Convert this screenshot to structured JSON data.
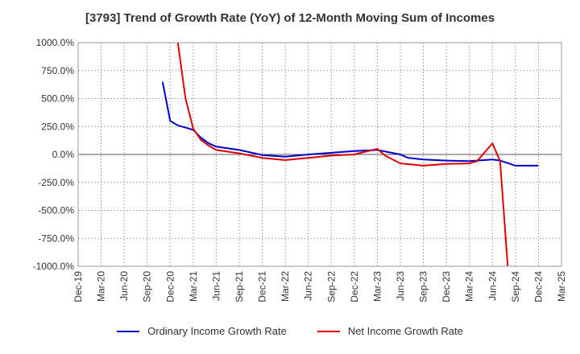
{
  "chart_data": {
    "type": "line",
    "title": "[3793]  Trend of Growth Rate (YoY) of 12-Month Moving Sum of Incomes",
    "xlabel": "",
    "ylabel": "",
    "ylim": [
      -1000,
      1000
    ],
    "y_ticks": [
      1000,
      750,
      500,
      250,
      0,
      -250,
      -500,
      -750,
      -1000
    ],
    "y_tick_labels": [
      "1000.0%",
      "750.0%",
      "500.0%",
      "250.0%",
      "0.0%",
      "-250.0%",
      "-500.0%",
      "-750.0%",
      "-1000.0%"
    ],
    "x_tick_labels": [
      "Dec-19",
      "Mar-20",
      "Jun-20",
      "Sep-20",
      "Dec-20",
      "Mar-21",
      "Jun-21",
      "Sep-21",
      "Dec-21",
      "Mar-22",
      "Jun-22",
      "Sep-22",
      "Dec-22",
      "Mar-23",
      "Jun-23",
      "Sep-23",
      "Dec-23",
      "Mar-24",
      "Jun-24",
      "Sep-24",
      "Dec-24",
      "Mar-25"
    ],
    "grid": true,
    "legend_position": "bottom",
    "series": [
      {
        "name": "Ordinary Income Growth Rate",
        "color": "#0000cc",
        "x": [
          "Nov-20",
          "Dec-20",
          "Jan-21",
          "Feb-21",
          "Mar-21",
          "Apr-21",
          "May-21",
          "Jun-21",
          "Sep-21",
          "Dec-21",
          "Mar-22",
          "Jun-22",
          "Sep-22",
          "Dec-22",
          "Mar-23",
          "Jun-23",
          "Jul-23",
          "Sep-23",
          "Dec-23",
          "Mar-24",
          "Jun-24",
          "Jul-24",
          "Sep-24",
          "Dec-24"
        ],
        "values": [
          650,
          300,
          260,
          240,
          220,
          150,
          100,
          70,
          40,
          -5,
          -20,
          0,
          15,
          30,
          40,
          0,
          -30,
          -45,
          -55,
          -60,
          -45,
          -55,
          -100,
          -100
        ]
      },
      {
        "name": "Net Income Growth Rate",
        "color": "#dd0000",
        "x": [
          "Jan-21",
          "Feb-21",
          "Mar-21",
          "Apr-21",
          "May-21",
          "Jun-21",
          "Sep-21",
          "Dec-21",
          "Mar-22",
          "Jun-22",
          "Sep-22",
          "Dec-22",
          "Mar-23",
          "Apr-23",
          "Jun-23",
          "Sep-23",
          "Dec-23",
          "Mar-24",
          "Apr-24",
          "Jun-24",
          "Jul-24",
          "Aug-24"
        ],
        "values": [
          1000,
          500,
          230,
          130,
          80,
          40,
          10,
          -30,
          -50,
          -30,
          -10,
          0,
          50,
          -10,
          -80,
          -100,
          -85,
          -80,
          -60,
          100,
          -60,
          -1000
        ]
      }
    ]
  }
}
